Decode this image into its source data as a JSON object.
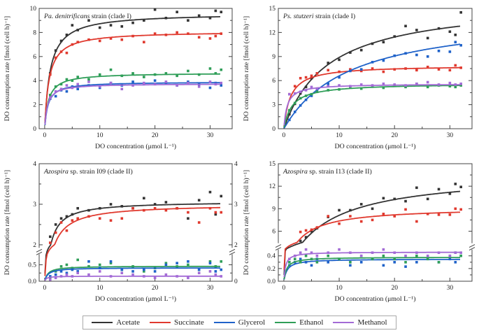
{
  "colors": {
    "acetate": "#333333",
    "succinate": "#e0392e",
    "glycerol": "#1f62c9",
    "ethanol": "#2f9e58",
    "methanol": "#a36bd6"
  },
  "legend": {
    "items": [
      {
        "key": "acetate",
        "label": "Acetate"
      },
      {
        "key": "succinate",
        "label": "Succinate"
      },
      {
        "key": "glycerol",
        "label": "Glycerol"
      },
      {
        "key": "ethanol",
        "label": "Ethanol"
      },
      {
        "key": "methanol",
        "label": "Methanol"
      }
    ]
  },
  "chart_data": [
    {
      "type": "scatter",
      "title_italic": "Pa. denitrificans",
      "title_rest": " strain (clade I)",
      "xlabel": "DO concentration (μmol L⁻¹)",
      "ylabel": "DO consumption rate [fmol (cell h)⁻¹]",
      "xlim": [
        -1,
        34
      ],
      "x_ticks": [
        0,
        10,
        20,
        30
      ],
      "x_minor": [
        5,
        15,
        25
      ],
      "y_segments": [
        {
          "d": [
            0,
            10
          ],
          "r": [
            0,
            1
          ]
        }
      ],
      "y_ticks": [
        {
          "v": 0,
          "label": "0"
        },
        {
          "v": 2,
          "label": "2"
        },
        {
          "v": 4,
          "label": "4"
        },
        {
          "v": 6,
          "label": "6"
        },
        {
          "v": 8,
          "label": "8"
        },
        {
          "v": 10,
          "label": "10"
        }
      ],
      "y_minor": [
        1,
        3,
        5,
        7,
        9
      ],
      "x_grid": [
        1,
        2,
        3,
        4,
        5,
        6,
        8,
        10,
        12,
        14,
        16,
        18,
        20,
        22,
        24,
        26,
        28,
        30,
        31,
        32
      ],
      "series": [
        {
          "key": "acetate",
          "fit": {
            "vmax": 9.6,
            "km": 1.0
          },
          "y": [
            4.6,
            6.5,
            7.3,
            7.8,
            8.6,
            8.2,
            9.0,
            8.4,
            8.6,
            8.5,
            8.8,
            9.0,
            9.9,
            9.2,
            9.7,
            9.0,
            9.4,
            9.2,
            9.8,
            9.7
          ]
        },
        {
          "key": "succinate",
          "fit": {
            "vmax": 8.1,
            "km": 0.8
          },
          "y": [
            4.5,
            5.9,
            6.4,
            6.3,
            7.0,
            7.2,
            7.4,
            7.3,
            7.5,
            7.4,
            7.7,
            7.2,
            7.9,
            7.8,
            8.0,
            7.9,
            7.6,
            7.5,
            7.7,
            7.9
          ]
        },
        {
          "key": "ethanol",
          "fit": {
            "vmax": 4.65,
            "km": 0.7
          },
          "y": [
            2.8,
            3.5,
            3.7,
            4.1,
            4.0,
            4.3,
            4.1,
            4.5,
            4.9,
            4.4,
            4.6,
            4.3,
            4.5,
            4.6,
            4.4,
            4.8,
            4.5,
            5.0,
            4.6,
            4.9
          ]
        },
        {
          "key": "glycerol",
          "fit": {
            "vmax": 3.9,
            "km": 0.6
          },
          "y": [
            2.5,
            2.7,
            3.2,
            3.1,
            3.5,
            3.3,
            3.6,
            3.4,
            3.8,
            3.6,
            3.9,
            3.7,
            4.0,
            3.8,
            3.6,
            3.9,
            3.7,
            3.4,
            3.8,
            3.6
          ]
        },
        {
          "key": "methanol",
          "fit": {
            "vmax": 3.75,
            "km": 0.5
          },
          "y": [
            2.6,
            3.1,
            3.3,
            3.6,
            3.4,
            3.7,
            3.9,
            3.5,
            3.8,
            3.3,
            3.6,
            3.8,
            3.7,
            3.9,
            3.6,
            3.8,
            3.5,
            3.9,
            3.7,
            3.8
          ]
        }
      ]
    },
    {
      "type": "scatter",
      "title_italic": "Ps. stutzeri",
      "title_rest": " strain (clade I)",
      "xlabel": "DO concentration (μmol L⁻¹)",
      "ylabel": "DO consumption rate [fmol (cell h)⁻¹]",
      "xlim": [
        -1,
        34
      ],
      "x_ticks": [
        0,
        10,
        20,
        30
      ],
      "x_minor": [
        5,
        15,
        25
      ],
      "y_segments": [
        {
          "d": [
            0,
            15
          ],
          "r": [
            0,
            1
          ]
        }
      ],
      "y_ticks": [
        {
          "v": 0,
          "label": "0"
        },
        {
          "v": 3,
          "label": "3"
        },
        {
          "v": 6,
          "label": "6"
        },
        {
          "v": 9,
          "label": "9"
        },
        {
          "v": 12,
          "label": "12"
        },
        {
          "v": 15,
          "label": "15"
        }
      ],
      "y_minor": [
        1.5,
        4.5,
        7.5,
        10.5,
        13.5
      ],
      "x_grid": [
        1,
        2,
        3,
        4,
        5,
        6,
        8,
        10,
        12,
        14,
        16,
        18,
        20,
        22,
        24,
        26,
        28,
        30,
        31,
        32
      ],
      "series": [
        {
          "key": "acetate",
          "fit": {
            "vmax": 16,
            "km": 8
          },
          "y": [
            1.8,
            3.1,
            4.4,
            5.2,
            6.3,
            6.9,
            8.2,
            8.6,
            9.5,
            9.8,
            10.6,
            10.8,
            11.5,
            12.8,
            12.3,
            11.3,
            12.5,
            12.1,
            11.7,
            14.5
          ]
        },
        {
          "key": "succinate",
          "fit": {
            "vmax": 7.9,
            "km": 1.2
          },
          "y": [
            4.3,
            5.3,
            6.3,
            6.4,
            6.6,
            6.9,
            7.3,
            7.1,
            7.4,
            7.2,
            7.5,
            7.1,
            7.4,
            7.5,
            7.3,
            7.7,
            7.4,
            7.3,
            7.9,
            7.6
          ]
        },
        {
          "key": "glycerol",
          "fit": {
            "vmax": 14.5,
            "km": 12
          },
          "y": [
            1.1,
            2.1,
            2.9,
            3.6,
            4.1,
            4.8,
            5.6,
            6.4,
            7.2,
            7.4,
            8.3,
            8.5,
            9.1,
            9.4,
            9.2,
            9.0,
            9.7,
            9.6,
            10.8,
            10.4
          ]
        },
        {
          "key": "ethanol",
          "fit": {
            "vmax": 5.65,
            "km": 1.5
          },
          "y": [
            2.3,
            3.2,
            3.8,
            4.1,
            4.3,
            4.6,
            4.8,
            4.9,
            5.2,
            5.0,
            5.3,
            5.1,
            5.4,
            5.2,
            5.6,
            5.2,
            5.4,
            5.3,
            5.2,
            5.4
          ]
        },
        {
          "key": "methanol",
          "fit": {
            "vmax": 5.6,
            "km": 0.6
          },
          "y": [
            4.3,
            4.4,
            4.6,
            4.8,
            5.2,
            5.0,
            5.3,
            5.4,
            5.3,
            5.5,
            5.4,
            5.6,
            5.5,
            5.4,
            5.6,
            5.8,
            5.5,
            5.7,
            5.5,
            5.6
          ]
        }
      ]
    },
    {
      "type": "scatter",
      "title_italic": "Azospira",
      "title_rest": " sp. strain I09 (clade II)",
      "xlabel": "DO concentration (μmol L⁻¹)",
      "ylabel": "DO consumption rate [fmol (cell h)⁻¹]",
      "xlim": [
        -1,
        34
      ],
      "x_ticks": [
        0,
        10,
        20,
        30
      ],
      "x_minor": [
        5,
        15,
        25
      ],
      "y_segments": [
        {
          "d": [
            0,
            0.75
          ],
          "r": [
            0,
            0.21
          ]
        },
        {
          "d": [
            2,
            4
          ],
          "r": [
            0.31,
            1
          ]
        }
      ],
      "break_frac": 0.26,
      "y_ticks": [
        {
          "v": 0,
          "label": "0.0"
        },
        {
          "v": 0.5,
          "label": "0.5"
        },
        {
          "v": 2,
          "label": "2"
        },
        {
          "v": 3,
          "label": "3"
        },
        {
          "v": 4,
          "label": "4"
        }
      ],
      "y_minor": [
        0.25,
        2.5,
        3.5
      ],
      "right_ticks": [
        {
          "v": 0,
          "label": "0"
        },
        {
          "v": 2,
          "label": "2"
        },
        {
          "v": 3,
          "label": "3"
        },
        {
          "v": 4,
          "label": "4"
        }
      ],
      "x_grid": [
        1,
        2,
        3,
        4,
        5,
        6,
        8,
        10,
        12,
        14,
        16,
        18,
        20,
        22,
        24,
        26,
        28,
        30,
        31,
        32
      ],
      "series": [
        {
          "key": "acetate",
          "fit": {
            "vmax": 3.07,
            "km": 0.6
          },
          "y": [
            2.2,
            2.5,
            2.65,
            2.7,
            2.75,
            2.9,
            2.85,
            2.9,
            3.0,
            2.95,
            2.9,
            3.15,
            3.0,
            3.05,
            2.9,
            2.65,
            3.1,
            3.3,
            2.75,
            3.2
          ]
        },
        {
          "key": "succinate",
          "fit": {
            "vmax": 3.0,
            "km": 0.9
          },
          "y": [
            2.05,
            2.3,
            2.55,
            2.35,
            2.6,
            2.65,
            2.7,
            2.65,
            2.6,
            2.65,
            2.9,
            2.85,
            2.9,
            2.85,
            2.9,
            2.8,
            2.55,
            2.9,
            2.8,
            2.8
          ]
        },
        {
          "key": "ethanol",
          "fit": {
            "vmax": 0.46,
            "km": 0.6
          },
          "y": [
            0.1,
            0.3,
            0.45,
            0.5,
            0.4,
            0.65,
            0.45,
            0.5,
            0.55,
            0.35,
            0.45,
            0.3,
            0.4,
            0.55,
            0.45,
            0.5,
            0.35,
            0.6,
            0.45,
            0.6
          ]
        },
        {
          "key": "glycerol",
          "fit": {
            "vmax": 0.41,
            "km": 0.6
          },
          "y": [
            0.15,
            0.2,
            0.3,
            0.25,
            0.35,
            0.3,
            0.6,
            0.4,
            0.6,
            0.35,
            0.3,
            0.35,
            0.3,
            0.5,
            0.55,
            0.6,
            0.35,
            0.55,
            0.3,
            0.35
          ]
        },
        {
          "key": "methanol",
          "fit": {
            "vmax": 0.155,
            "km": 0.3
          },
          "y": [
            0.05,
            0.1,
            0.15,
            0.2,
            0.15,
            0.25,
            0.2,
            0.3,
            0.15,
            0.25,
            0.2,
            0.15,
            0.1,
            0.2,
            0.15,
            0.1,
            0.25,
            0.3,
            0.2,
            0.15
          ]
        }
      ]
    },
    {
      "type": "scatter",
      "title_italic": "Azospira",
      "title_rest": " sp. strain I13 (clade II)",
      "xlabel": "DO concentration (μmol L⁻¹)",
      "ylabel": "DO consumption rate [fmol (cell h)⁻¹]",
      "xlim": [
        -1,
        34
      ],
      "x_ticks": [
        0,
        10,
        20,
        30
      ],
      "x_minor": [
        5,
        15,
        25
      ],
      "y_segments": [
        {
          "d": [
            0,
            0.5
          ],
          "r": [
            0,
            0.27
          ]
        },
        {
          "d": [
            4.5,
            15
          ],
          "r": [
            0.33,
            1
          ]
        }
      ],
      "break_frac": 0.3,
      "y_ticks": [
        {
          "v": 0,
          "label": "0.0"
        },
        {
          "v": 0.2,
          "label": "0.2"
        },
        {
          "v": 0.4,
          "label": "0.4"
        },
        {
          "v": 6,
          "label": "6"
        },
        {
          "v": 9,
          "label": "9"
        },
        {
          "v": 12,
          "label": "12"
        },
        {
          "v": 15,
          "label": "15"
        }
      ],
      "y_minor": [
        0.1,
        0.3,
        7.5,
        10.5,
        13.5
      ],
      "x_grid": [
        1,
        2,
        3,
        4,
        5,
        6,
        8,
        10,
        12,
        14,
        16,
        18,
        20,
        22,
        24,
        26,
        28,
        30,
        31,
        32
      ],
      "series": [
        {
          "key": "acetate",
          "fit": {
            "vmax": 13.8,
            "km": 7
          },
          "y": [
            1.7,
            3.1,
            4.7,
            5.2,
            6.0,
            6.4,
            7.9,
            8.8,
            8.8,
            9.6,
            9.0,
            10.4,
            10.3,
            10.0,
            11.8,
            10.3,
            11.6,
            11.0,
            12.3,
            11.9
          ]
        },
        {
          "key": "succinate",
          "fit": {
            "vmax": 9.2,
            "km": 2.5
          },
          "y": [
            2.6,
            4.1,
            5.9,
            6.1,
            6.2,
            6.5,
            8.0,
            7.0,
            8.0,
            7.3,
            7.5,
            8.3,
            8.0,
            8.9,
            7.3,
            8.3,
            8.2,
            8.2,
            9.0,
            8.9
          ]
        },
        {
          "key": "glycerol",
          "fit": {
            "vmax": 0.35,
            "km": 0.6
          },
          "y": [
            0.25,
            0.3,
            0.35,
            0.3,
            0.25,
            0.35,
            0.3,
            0.35,
            0.25,
            0.3,
            0.35,
            0.25,
            0.3,
            0.23,
            0.3,
            0.35,
            0.3,
            0.35,
            0.3,
            0.4
          ]
        },
        {
          "key": "ethanol",
          "fit": {
            "vmax": 0.38,
            "km": 0.5
          },
          "y": [
            0.3,
            0.35,
            0.3,
            0.4,
            0.35,
            0.3,
            0.4,
            0.35,
            0.3,
            0.4,
            0.35,
            0.4,
            0.35,
            0.3,
            0.4,
            0.35,
            0.3,
            0.4,
            0.45,
            0.4
          ]
        },
        {
          "key": "methanol",
          "fit": {
            "vmax": 0.46,
            "km": 0.3
          },
          "y": [
            0.35,
            0.4,
            0.45,
            0.5,
            0.45,
            0.4,
            0.45,
            0.5,
            0.45,
            0.4,
            0.45,
            0.5,
            0.45,
            0.4,
            0.45,
            0.4,
            0.45,
            0.4,
            0.45,
            0.45
          ]
        }
      ]
    }
  ]
}
